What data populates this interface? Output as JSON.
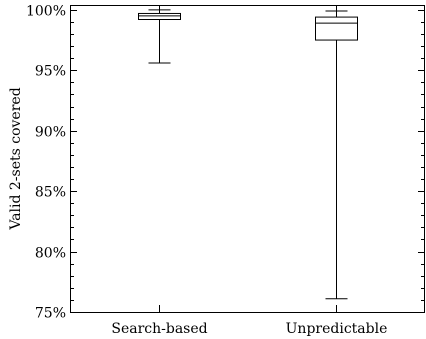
{
  "chart_data": {
    "type": "boxplot",
    "title": "",
    "xlabel": "",
    "ylabel": "Valid 2-sets covered",
    "ylim": [
      75,
      100.4
    ],
    "yticks": [
      75,
      80,
      85,
      90,
      95,
      100
    ],
    "ytick_labels": [
      "75%",
      "80%",
      "85%",
      "90%",
      "95%",
      "100%"
    ],
    "grid": false,
    "legend": "none",
    "categories": [
      "Search-based",
      "Unpredictable"
    ],
    "series": [
      {
        "min": 95.6,
        "q1": 99.2,
        "median": 99.5,
        "q3": 99.7,
        "max": 100.0
      },
      {
        "min": 76.1,
        "q1": 97.5,
        "median": 98.9,
        "q3": 99.4,
        "max": 99.9
      }
    ]
  }
}
